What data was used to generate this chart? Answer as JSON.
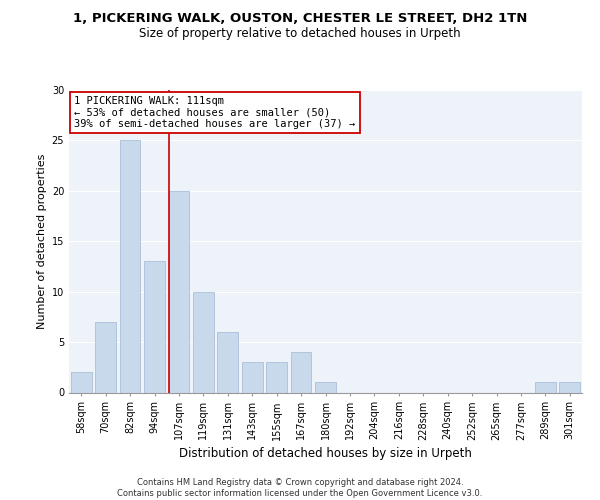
{
  "title_line1": "1, PICKERING WALK, OUSTON, CHESTER LE STREET, DH2 1TN",
  "title_line2": "Size of property relative to detached houses in Urpeth",
  "xlabel": "Distribution of detached houses by size in Urpeth",
  "ylabel": "Number of detached properties",
  "categories": [
    "58sqm",
    "70sqm",
    "82sqm",
    "94sqm",
    "107sqm",
    "119sqm",
    "131sqm",
    "143sqm",
    "155sqm",
    "167sqm",
    "180sqm",
    "192sqm",
    "204sqm",
    "216sqm",
    "228sqm",
    "240sqm",
    "252sqm",
    "265sqm",
    "277sqm",
    "289sqm",
    "301sqm"
  ],
  "values": [
    2,
    7,
    25,
    13,
    20,
    10,
    6,
    3,
    3,
    4,
    1,
    0,
    0,
    0,
    0,
    0,
    0,
    0,
    0,
    1,
    1
  ],
  "bar_color": "#c9d9ec",
  "bar_edge_color": "#a0b8d8",
  "highlight_line_color": "#cc0000",
  "highlight_bin_index": 4,
  "annotation_text": "1 PICKERING WALK: 111sqm\n← 53% of detached houses are smaller (50)\n39% of semi-detached houses are larger (37) →",
  "annotation_box_color": "#ffffff",
  "annotation_box_edge_color": "#cc0000",
  "ylim": [
    0,
    30
  ],
  "yticks": [
    0,
    5,
    10,
    15,
    20,
    25,
    30
  ],
  "footer_text": "Contains HM Land Registry data © Crown copyright and database right 2024.\nContains public sector information licensed under the Open Government Licence v3.0.",
  "background_color": "#eef2f9",
  "grid_color": "#ffffff",
  "title_fontsize": 9.5,
  "subtitle_fontsize": 8.5,
  "ylabel_fontsize": 8,
  "xlabel_fontsize": 8.5,
  "tick_fontsize": 7,
  "annotation_fontsize": 7.5,
  "footer_fontsize": 6
}
